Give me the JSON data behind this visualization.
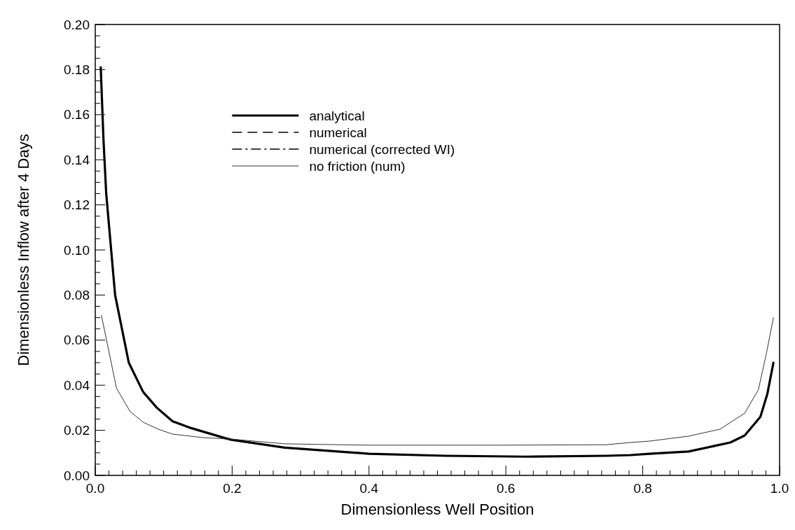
{
  "chart_data": {
    "type": "line",
    "xlabel": "Dimensionless Well Position",
    "ylabel": "Dimensionless Inflow after 4 Days",
    "xlim": [
      0,
      1
    ],
    "ylim": [
      0,
      0.2
    ],
    "xticks": [
      {
        "value": 0,
        "label": "0.0"
      },
      {
        "value": 0.02,
        "label": null
      },
      {
        "value": 0.04,
        "label": null
      },
      {
        "value": 0.06,
        "label": null
      },
      {
        "value": 0.08,
        "label": null
      },
      {
        "value": 0.1,
        "label": null
      },
      {
        "value": 0.12,
        "label": null
      },
      {
        "value": 0.14,
        "label": null
      },
      {
        "value": 0.16,
        "label": null
      },
      {
        "value": 0.18,
        "label": null
      },
      {
        "value": 0.2,
        "label": "0.2"
      },
      {
        "value": 0.22,
        "label": null
      },
      {
        "value": 0.24,
        "label": null
      },
      {
        "value": 0.26,
        "label": null
      },
      {
        "value": 0.28,
        "label": null
      },
      {
        "value": 0.3,
        "label": null
      },
      {
        "value": 0.32,
        "label": null
      },
      {
        "value": 0.34,
        "label": null
      },
      {
        "value": 0.36,
        "label": null
      },
      {
        "value": 0.38,
        "label": null
      },
      {
        "value": 0.4,
        "label": "0.4"
      },
      {
        "value": 0.42,
        "label": null
      },
      {
        "value": 0.44,
        "label": null
      },
      {
        "value": 0.46,
        "label": null
      },
      {
        "value": 0.48,
        "label": null
      },
      {
        "value": 0.5,
        "label": null
      },
      {
        "value": 0.52,
        "label": null
      },
      {
        "value": 0.54,
        "label": null
      },
      {
        "value": 0.56,
        "label": null
      },
      {
        "value": 0.58,
        "label": null
      },
      {
        "value": 0.6,
        "label": "0.6"
      },
      {
        "value": 0.62,
        "label": null
      },
      {
        "value": 0.64,
        "label": null
      },
      {
        "value": 0.66,
        "label": null
      },
      {
        "value": 0.68,
        "label": null
      },
      {
        "value": 0.7,
        "label": null
      },
      {
        "value": 0.72,
        "label": null
      },
      {
        "value": 0.74,
        "label": null
      },
      {
        "value": 0.76,
        "label": null
      },
      {
        "value": 0.78,
        "label": null
      },
      {
        "value": 0.8,
        "label": "0.8"
      },
      {
        "value": 0.82,
        "label": null
      },
      {
        "value": 0.84,
        "label": null
      },
      {
        "value": 0.86,
        "label": null
      },
      {
        "value": 0.88,
        "label": null
      },
      {
        "value": 0.9,
        "label": null
      },
      {
        "value": 0.92,
        "label": null
      },
      {
        "value": 0.94,
        "label": null
      },
      {
        "value": 0.96,
        "label": null
      },
      {
        "value": 0.98,
        "label": null
      },
      {
        "value": 1,
        "label": "1.0"
      }
    ],
    "yticks": [
      {
        "value": 0,
        "label": "0.00"
      },
      {
        "value": 0.005,
        "label": null
      },
      {
        "value": 0.01,
        "label": null
      },
      {
        "value": 0.015,
        "label": null
      },
      {
        "value": 0.02,
        "label": "0.02"
      },
      {
        "value": 0.025,
        "label": null
      },
      {
        "value": 0.03,
        "label": null
      },
      {
        "value": 0.035,
        "label": null
      },
      {
        "value": 0.04,
        "label": "0.04"
      },
      {
        "value": 0.045,
        "label": null
      },
      {
        "value": 0.05,
        "label": null
      },
      {
        "value": 0.055,
        "label": null
      },
      {
        "value": 0.06,
        "label": "0.06"
      },
      {
        "value": 0.065,
        "label": null
      },
      {
        "value": 0.07,
        "label": null
      },
      {
        "value": 0.075,
        "label": null
      },
      {
        "value": 0.08,
        "label": "0.08"
      },
      {
        "value": 0.085,
        "label": null
      },
      {
        "value": 0.09,
        "label": null
      },
      {
        "value": 0.095,
        "label": null
      },
      {
        "value": 0.1,
        "label": "0.10"
      },
      {
        "value": 0.105,
        "label": null
      },
      {
        "value": 0.11,
        "label": null
      },
      {
        "value": 0.115,
        "label": null
      },
      {
        "value": 0.12,
        "label": "0.12"
      },
      {
        "value": 0.125,
        "label": null
      },
      {
        "value": 0.13,
        "label": null
      },
      {
        "value": 0.135,
        "label": null
      },
      {
        "value": 0.14,
        "label": "0.14"
      },
      {
        "value": 0.145,
        "label": null
      },
      {
        "value": 0.15,
        "label": null
      },
      {
        "value": 0.155,
        "label": null
      },
      {
        "value": 0.16,
        "label": "0.16"
      },
      {
        "value": 0.165,
        "label": null
      },
      {
        "value": 0.17,
        "label": null
      },
      {
        "value": 0.175,
        "label": null
      },
      {
        "value": 0.18,
        "label": "0.18"
      },
      {
        "value": 0.185,
        "label": null
      },
      {
        "value": 0.19,
        "label": null
      },
      {
        "value": 0.195,
        "label": null
      },
      {
        "value": 0.2,
        "label": "0.20"
      }
    ],
    "grid": false,
    "legend": "top",
    "marker": "none",
    "series": [
      {
        "name": "analytical",
        "color": "#000000",
        "line_style": "solid",
        "x": [
          0.008,
          0.012,
          0.016,
          0.029,
          0.049,
          0.07,
          0.09,
          0.113,
          0.14,
          0.19,
          0.199,
          0.277,
          0.4,
          0.512,
          0.63,
          0.747,
          0.782,
          0.81,
          0.867,
          0.928,
          0.949,
          0.972,
          0.982,
          0.991
        ],
        "values": [
          0.181,
          0.149,
          0.125,
          0.08,
          0.05,
          0.037,
          0.03,
          0.024,
          0.021,
          0.0165,
          0.0158,
          0.0123,
          0.0096,
          0.0087,
          0.0083,
          0.0087,
          0.009,
          0.0096,
          0.0106,
          0.0146,
          0.0177,
          0.026,
          0.036,
          0.05
        ]
      },
      {
        "name": "numerical",
        "color": "#000000",
        "line_style": "dashed"
      },
      {
        "name": "numerical (corrected WI)",
        "color": "#000000",
        "line_style": "dashdot"
      },
      {
        "name": "no friction (num)",
        "color": "#333333",
        "line_style": "solid",
        "x": [
          0.009,
          0.031,
          0.051,
          0.07,
          0.092,
          0.113,
          0.156,
          0.19,
          0.199,
          0.277,
          0.4,
          0.59,
          0.747,
          0.782,
          0.81,
          0.867,
          0.913,
          0.949,
          0.969,
          0.98,
          0.991
        ],
        "values": [
          0.071,
          0.0387,
          0.0283,
          0.0236,
          0.0205,
          0.0183,
          0.0168,
          0.0162,
          0.0161,
          0.014,
          0.0134,
          0.0134,
          0.0136,
          0.0146,
          0.0152,
          0.0174,
          0.0205,
          0.0276,
          0.038,
          0.053,
          0.07
        ]
      }
    ]
  }
}
